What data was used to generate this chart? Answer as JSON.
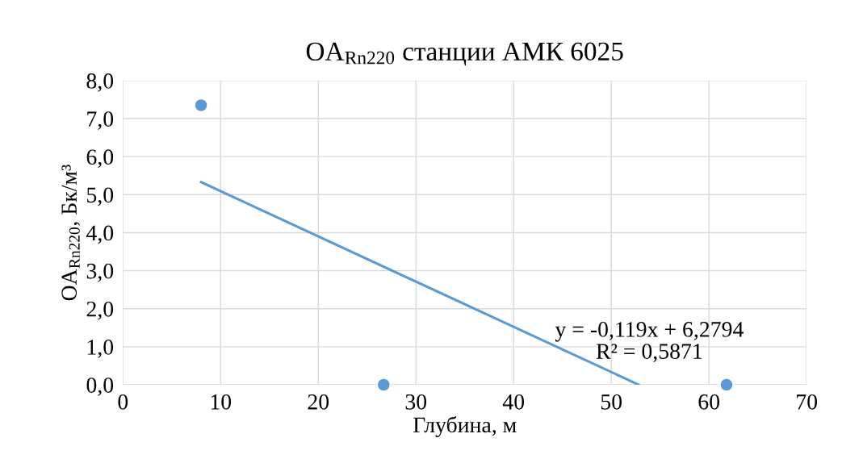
{
  "chart_data": {
    "type": "scatter",
    "title": "OA$_{Rn220}$ станции АМК 6025",
    "xlabel": "Глубина, м",
    "ylabel": "OA$_{Rn220}$, Бк/м³",
    "series": [
      {
        "color": "#5b9bd5",
        "x": [
          8,
          26.7,
          61.8
        ],
        "values": [
          7.35,
          0,
          0
        ],
        "marker": "circle"
      },
      {
        "type": "line",
        "color": "#5b9bd5",
        "x": [
          8,
          52.8
        ],
        "values": [
          5.33,
          0
        ],
        "line_style": "solid",
        "marker": "none"
      }
    ],
    "xlim": [
      0,
      70
    ],
    "xticks": [
      0,
      10,
      20,
      30,
      40,
      50,
      60,
      70
    ],
    "ylim": [
      0,
      8
    ],
    "yticks": [
      {
        "value": 0,
        "label": "0,0"
      },
      {
        "value": 1,
        "label": "1,0"
      },
      {
        "value": 2,
        "label": "2,0"
      },
      {
        "value": 3,
        "label": "3,0"
      },
      {
        "value": 4,
        "label": "4,0"
      },
      {
        "value": 5,
        "label": "5,0"
      },
      {
        "value": 6,
        "label": "6,0"
      },
      {
        "value": 7,
        "label": "7,0"
      },
      {
        "value": 8,
        "label": "8,0"
      }
    ],
    "grid": true,
    "legend": false,
    "annotations": [
      "y = -0,119x + 6,2794\nR² = 0,5871"
    ]
  }
}
